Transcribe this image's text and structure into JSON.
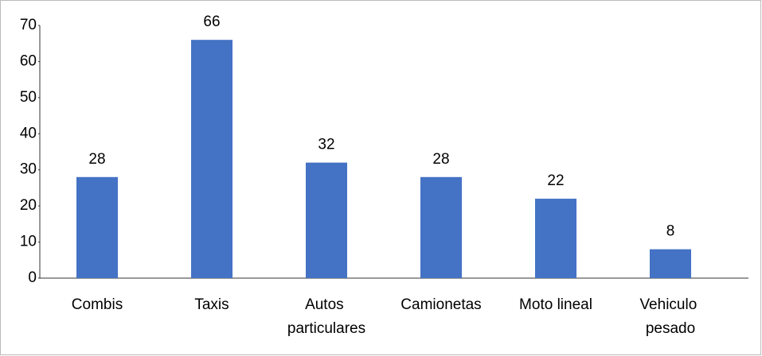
{
  "chart_data": {
    "type": "bar",
    "categories": [
      "Combis",
      "Taxis",
      "Autos particulares",
      "Camionetas",
      "Moto lineal",
      "Vehiculo pesado"
    ],
    "values": [
      28,
      66,
      32,
      28,
      22,
      8
    ],
    "color": "#4472c4",
    "ylim": [
      0,
      70
    ],
    "yticks": [
      0,
      10,
      20,
      30,
      40,
      50,
      60,
      70
    ],
    "grid": false
  }
}
